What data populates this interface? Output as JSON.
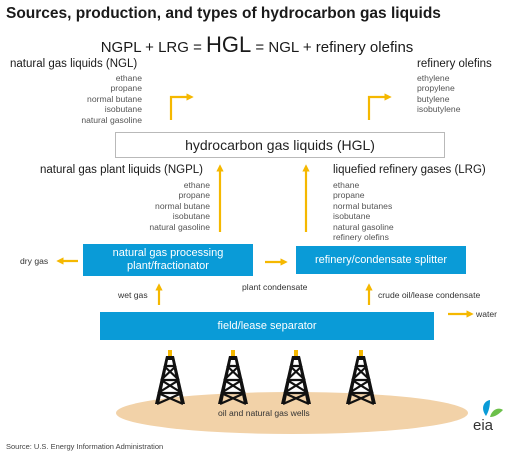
{
  "title": "Sources, production, and types of hydrocarbon gas liquids",
  "formula": {
    "left": "NGPL + LRG = ",
    "big": "HGL",
    "right": " = NGL + refinery olefins"
  },
  "ngl": {
    "heading": "natural gas liquids (NGL)",
    "items": [
      "ethane",
      "propane",
      "normal butane",
      "isobutane",
      "natural gasoline"
    ]
  },
  "olefins": {
    "heading": "refinery olefins",
    "items": [
      "ethylene",
      "propylene",
      "butylene",
      "isobutylene"
    ]
  },
  "hgl_box": "hydrocarbon gas liquids (HGL)",
  "ngpl": {
    "heading": "natural gas plant liquids (NGPL)",
    "items": [
      "ethane",
      "propane",
      "normal butane",
      "isobutane",
      "natural gasoline"
    ]
  },
  "lrg": {
    "heading": "liquefied refinery gases (LRG)",
    "items": [
      "ethane",
      "propane",
      "normal butanes",
      "isobutane",
      "natural gasoline",
      "refinery olefins"
    ]
  },
  "processing_box": {
    "line1": "natural gas processing",
    "line2": "plant/fractionator"
  },
  "splitter_box": "refinery/condensate splitter",
  "separator_box": "field/lease separator",
  "labels": {
    "dry_gas": "dry gas",
    "plant_condensate": "plant condensate",
    "wet_gas": "wet gas",
    "crude_oil": "crude oil/lease condensate",
    "water": "water",
    "wells": "oil and natural gas wells"
  },
  "source": "Source: U.S. Energy Information  Administration",
  "logo": "eia",
  "colors": {
    "arrow": "#f5b800",
    "box_blue": "#0a9bd7",
    "ground": "#f2d2a8",
    "derrick": "#111111"
  }
}
